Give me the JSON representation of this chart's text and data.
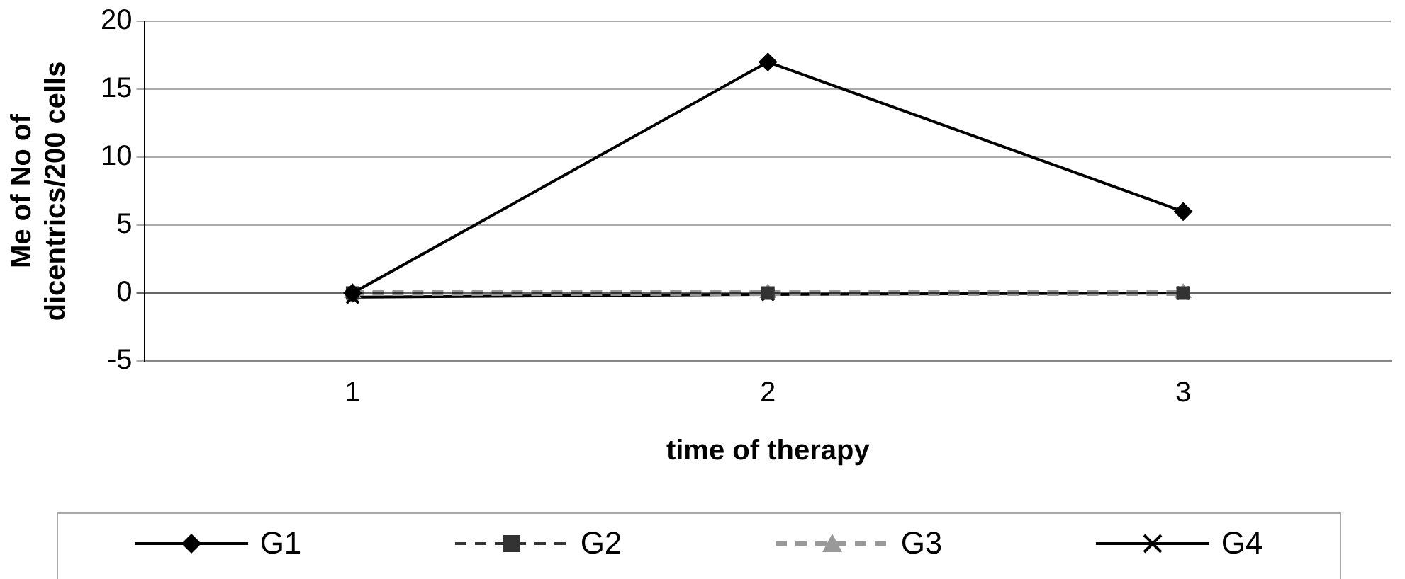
{
  "chart_data": {
    "type": "line",
    "xlabel": "time of therapy",
    "ylabel": "Me of No of dicentrics/200 cells",
    "categories": [
      "1",
      "2",
      "3"
    ],
    "series": [
      {
        "name": "G1",
        "color": "#000000",
        "values": [
          0,
          17,
          6
        ],
        "marker": "diamond",
        "line_style": "solid"
      },
      {
        "name": "G2",
        "color": "#333333",
        "values": [
          0,
          0,
          0
        ],
        "marker": "square",
        "line_style": "dashed"
      },
      {
        "name": "G3",
        "color": "#999999",
        "values": [
          0,
          0,
          0
        ],
        "marker": "triangle",
        "line_style": "dashed"
      },
      {
        "name": "G4",
        "color": "#000000",
        "values": [
          -0.3,
          -0.1,
          0
        ],
        "marker": "cross",
        "line_style": "solid"
      }
    ],
    "ylim": [
      -5,
      20
    ],
    "yticks": [
      -5,
      0,
      5,
      10,
      15,
      20
    ],
    "grid": "y",
    "legend": "bottom"
  }
}
